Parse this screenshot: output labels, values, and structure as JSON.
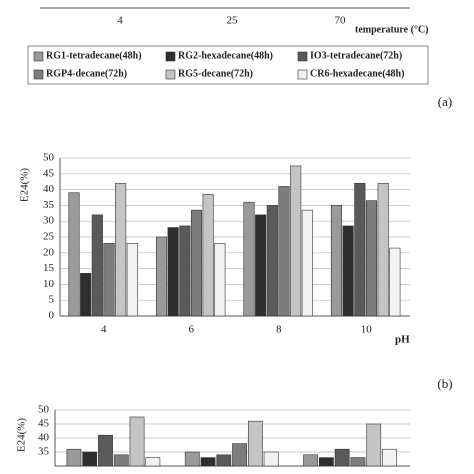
{
  "chart_data": [
    {
      "type": "bar",
      "categories": [
        "4",
        "25",
        "70"
      ],
      "x_label": "temperature (°C)",
      "panel_label": "(a)"
    },
    {
      "type": "bar",
      "y_label": "E24(%)",
      "x_label": "pH",
      "panel_label": "(b)",
      "categories": [
        "4",
        "6",
        "8",
        "10"
      ],
      "ylim": [
        0,
        50
      ],
      "yticks": [
        0,
        5,
        10,
        15,
        20,
        25,
        30,
        35,
        40,
        45,
        50
      ],
      "grid": true,
      "series": [
        {
          "name": "RG1-tetradecane(48h)",
          "color": "#9a9a9a",
          "values": [
            39,
            25,
            36,
            35
          ]
        },
        {
          "name": "RG2-hexadecane(48h)",
          "color": "#2e2e2e",
          "values": [
            13.5,
            28,
            32,
            28.5
          ]
        },
        {
          "name": "IO3-tetradecane(72h)",
          "color": "#5a5a5a",
          "values": [
            32,
            28.5,
            35,
            42
          ]
        },
        {
          "name": "RGP4-decane(72h)",
          "color": "#7d7d7d",
          "values": [
            23,
            33.5,
            41,
            36.5
          ]
        },
        {
          "name": "RG5-decane(72h)",
          "color": "#c4c4c4",
          "values": [
            42,
            38.5,
            47.5,
            42
          ]
        },
        {
          "name": "CR6-hexadecane(48h)",
          "color": "#f2f2f2",
          "values": [
            23,
            23,
            33.5,
            21.5
          ]
        }
      ]
    },
    {
      "type": "bar",
      "y_label": "E24(%)",
      "categories": [
        null,
        null,
        null
      ],
      "ylim": [
        30,
        50
      ],
      "yticks": [
        35,
        40,
        45,
        50
      ],
      "grid": true,
      "series": [
        {
          "color": "#9a9a9a",
          "values": [
            36,
            35,
            34
          ]
        },
        {
          "color": "#2e2e2e",
          "values": [
            35,
            33,
            33
          ]
        },
        {
          "color": "#5a5a5a",
          "values": [
            41,
            34,
            36
          ]
        },
        {
          "color": "#7d7d7d",
          "values": [
            34,
            38,
            33
          ]
        },
        {
          "color": "#c4c4c4",
          "values": [
            47.5,
            46,
            45
          ]
        },
        {
          "color": "#f2f2f2",
          "values": [
            33,
            35,
            36
          ]
        }
      ]
    }
  ]
}
